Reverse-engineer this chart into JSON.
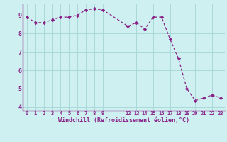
{
  "x": [
    0,
    1,
    2,
    3,
    4,
    5,
    6,
    7,
    8,
    9,
    12,
    13,
    14,
    15,
    16,
    17,
    18,
    19,
    20,
    21,
    22,
    23
  ],
  "y": [
    8.9,
    8.6,
    8.6,
    8.75,
    8.9,
    8.9,
    9.0,
    9.3,
    9.35,
    9.3,
    8.4,
    8.6,
    8.25,
    8.9,
    8.9,
    7.7,
    6.65,
    5.0,
    4.35,
    4.5,
    4.65,
    4.5
  ],
  "line_color": "#882288",
  "marker_color": "#882288",
  "bg_color": "#cff0f0",
  "grid_color": "#aad8d8",
  "xlabel": "Windchill (Refroidissement éolien,°C)",
  "xlabel_color": "#882288",
  "tick_color": "#882288",
  "ylim": [
    3.8,
    9.6
  ],
  "yticks": [
    4,
    5,
    6,
    7,
    8,
    9
  ],
  "xtick_positions": [
    0,
    1,
    2,
    3,
    4,
    5,
    6,
    7,
    8,
    9,
    12,
    13,
    14,
    15,
    16,
    17,
    18,
    19,
    20,
    21,
    22,
    23
  ],
  "xtick_labels": [
    "0",
    "1",
    "2",
    "3",
    "4",
    "5",
    "6",
    "7",
    "8",
    "9",
    "12",
    "13",
    "14",
    "15",
    "16",
    "17",
    "18",
    "19",
    "20",
    "21",
    "22",
    "23"
  ],
  "xlim": [
    -0.5,
    23.5
  ]
}
